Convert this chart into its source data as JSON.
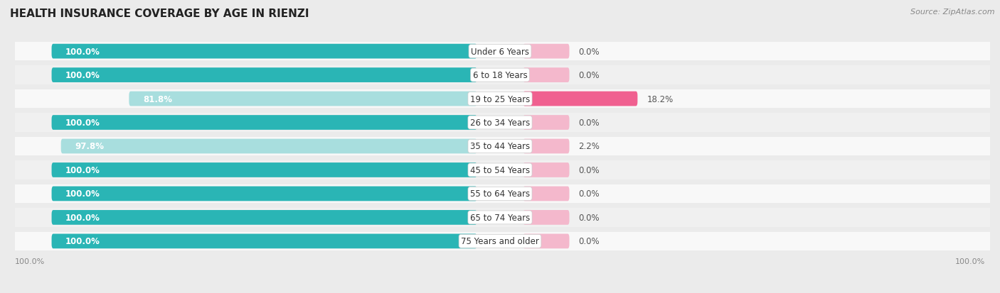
{
  "title": "HEALTH INSURANCE COVERAGE BY AGE IN RIENZI",
  "source": "Source: ZipAtlas.com",
  "categories": [
    "Under 6 Years",
    "6 to 18 Years",
    "19 to 25 Years",
    "26 to 34 Years",
    "35 to 44 Years",
    "45 to 54 Years",
    "55 to 64 Years",
    "65 to 74 Years",
    "75 Years and older"
  ],
  "with_coverage": [
    100.0,
    100.0,
    81.8,
    100.0,
    97.8,
    100.0,
    100.0,
    100.0,
    100.0
  ],
  "without_coverage": [
    0.0,
    0.0,
    18.2,
    0.0,
    2.2,
    0.0,
    0.0,
    0.0,
    0.0
  ],
  "color_with_full": "#2ab5b5",
  "color_with_light": "#a8dede",
  "color_without_full": "#f06090",
  "color_without_light": "#f4b8cc",
  "bg_color": "#ebebeb",
  "bar_row_bg": "#f8f8f8",
  "title_fontsize": 11,
  "label_fontsize": 8.5,
  "tick_fontsize": 8,
  "legend_fontsize": 9,
  "source_fontsize": 8
}
